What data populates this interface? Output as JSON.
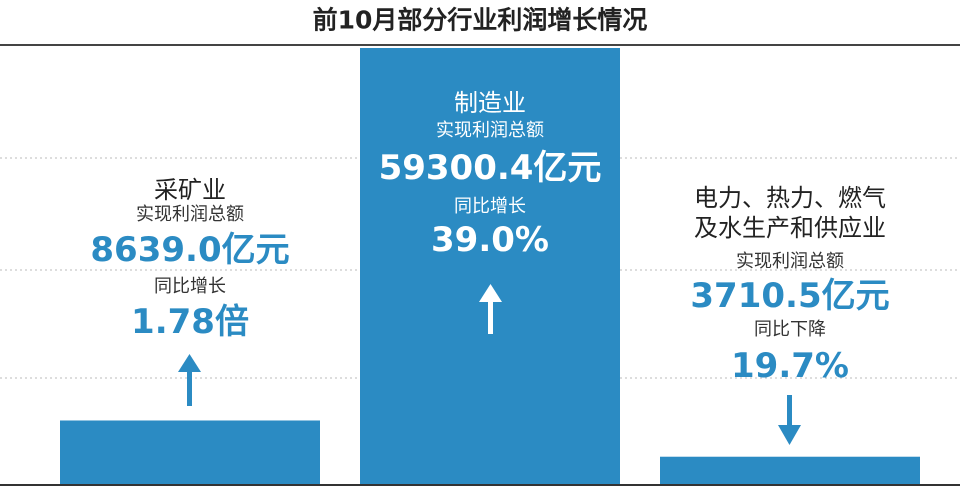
{
  "chart_data": {
    "type": "bar",
    "title": "前10月部分行业利润增长情况",
    "categories": [
      "采矿业",
      "制造业",
      "电力、热力、燃气及水生产和供应业"
    ],
    "values": [
      8639.0,
      59300.4,
      3710.5
    ],
    "value_labels": [
      "8639.0亿元",
      "59300.4亿元",
      "3710.5亿元"
    ],
    "metric_label": "实现利润总额",
    "change_labels": [
      "同比增长",
      "同比增长",
      "同比下降"
    ],
    "change_values": [
      "1.78倍",
      "39.0%",
      "19.7%"
    ],
    "color": "#2b8bc3",
    "ylim": [
      0,
      59300.4
    ]
  }
}
